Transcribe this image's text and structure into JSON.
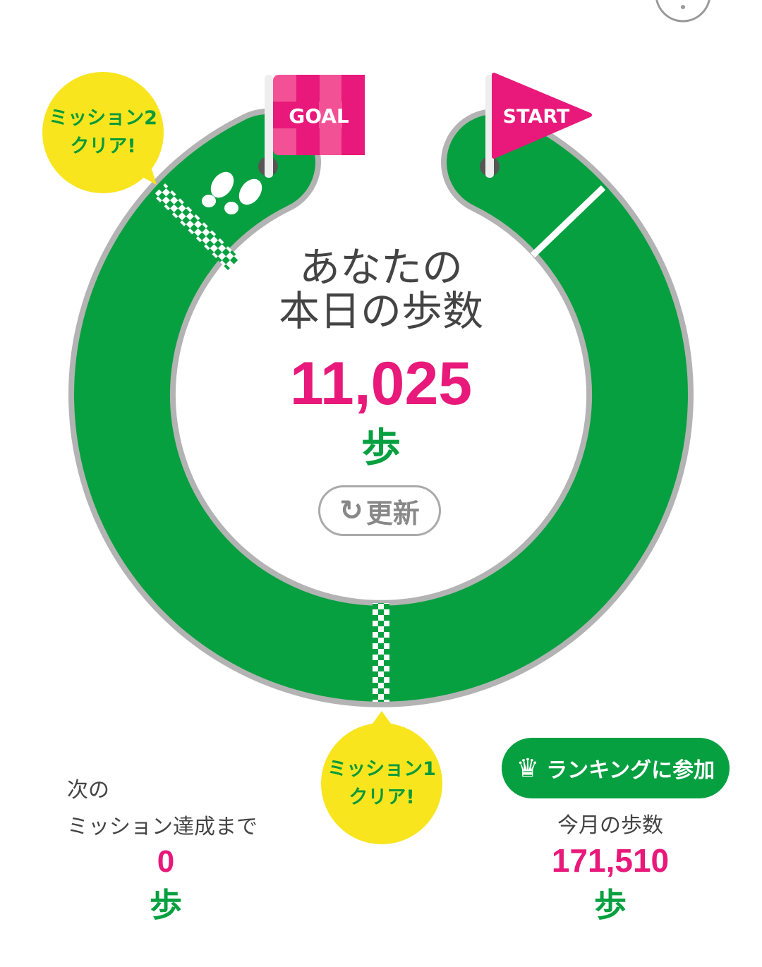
{
  "colors": {
    "track": "#06a040",
    "accent": "#e8197a",
    "bubble": "#f8e51e",
    "border": "#b3b3b3"
  },
  "flags": {
    "goal": "GOAL",
    "start": "START"
  },
  "today": {
    "title_line1": "あなたの",
    "title_line2": "本日の歩数",
    "steps": "11,025",
    "unit": "歩"
  },
  "refresh": {
    "icon": "refresh-icon",
    "label": "更新"
  },
  "missions": {
    "m2_line1": "ミッション2",
    "m2_line2": "クリア!",
    "m1_line1": "ミッション1",
    "m1_line2": "クリア!"
  },
  "next": {
    "line1": "次の",
    "line2": "ミッション達成まで",
    "value": "0",
    "unit": "歩"
  },
  "ranking": {
    "icon": "crown-icon",
    "label": "ランキングに参加"
  },
  "month": {
    "label": "今月の歩数",
    "value": "171,510",
    "unit": "歩"
  },
  "help": {
    "icon": "help-icon"
  }
}
